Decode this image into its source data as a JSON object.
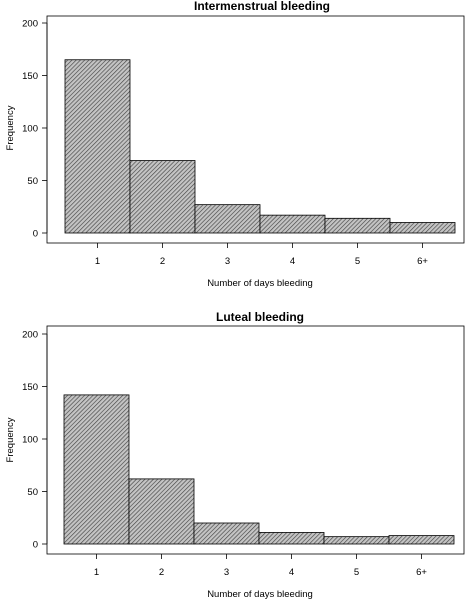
{
  "chart_data": [
    {
      "type": "bar",
      "title": "Intermenstrual bleeding",
      "xlabel": "Number of days bleeding",
      "ylabel": "Frequency",
      "categories": [
        "1",
        "2",
        "3",
        "4",
        "5",
        "6+"
      ],
      "values": [
        165,
        69,
        27,
        17,
        14,
        10
      ],
      "ylim": [
        0,
        200
      ],
      "yticks": [
        0,
        50,
        100,
        150,
        200
      ],
      "grid": false,
      "bar_fill": "#9a9a9a"
    },
    {
      "type": "bar",
      "title": "Luteal bleeding",
      "xlabel": "Number of days bleeding",
      "ylabel": "Frequency",
      "categories": [
        "1",
        "2",
        "3",
        "4",
        "5",
        "6+"
      ],
      "values": [
        142,
        62,
        20,
        11,
        7,
        8
      ],
      "ylim": [
        0,
        200
      ],
      "yticks": [
        0,
        50,
        100,
        150,
        200
      ],
      "grid": false,
      "bar_fill": "#9a9a9a"
    }
  ]
}
